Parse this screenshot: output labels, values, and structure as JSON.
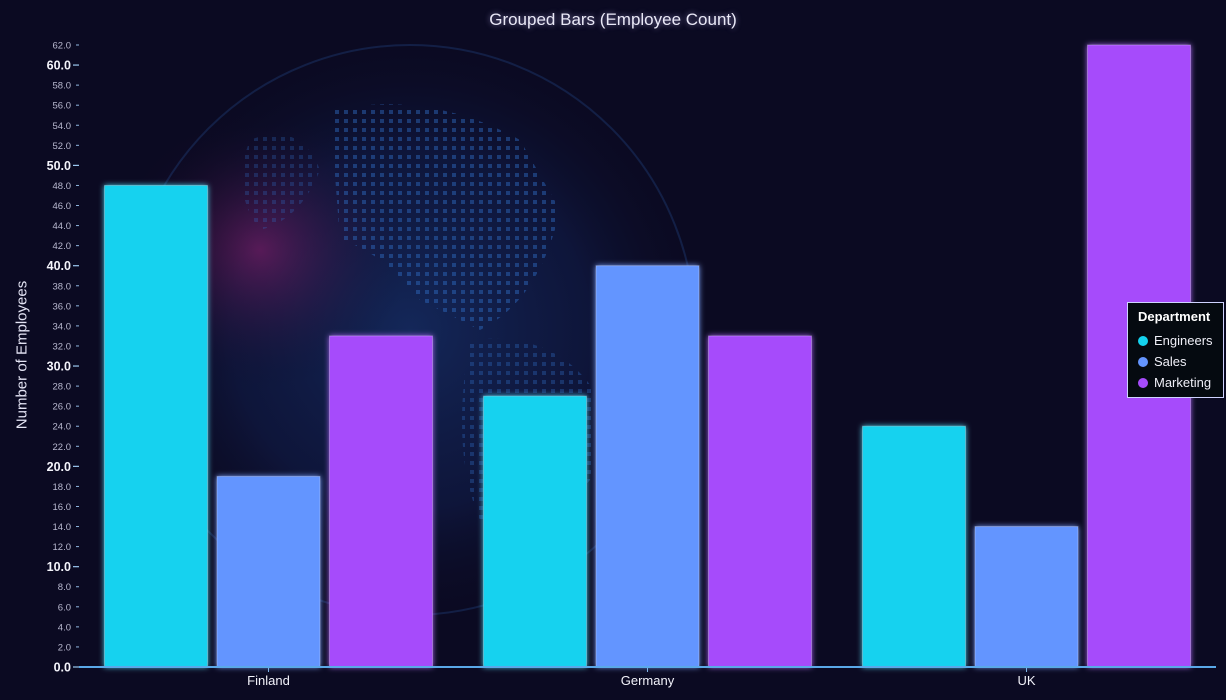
{
  "chart_data": {
    "type": "bar",
    "title": "Grouped Bars (Employee Count)",
    "xlabel": "",
    "ylabel": "Number of Employees",
    "categories": [
      "Finland",
      "Germany",
      "UK"
    ],
    "series": [
      {
        "name": "Engineers",
        "values": [
          48,
          27,
          24
        ],
        "color": "#14d2ef"
      },
      {
        "name": "Sales",
        "values": [
          19,
          40,
          14
        ],
        "color": "#6495ff"
      },
      {
        "name": "Marketing",
        "values": [
          33,
          33,
          62
        ],
        "color": "#a64bfb"
      }
    ],
    "ylim": [
      0,
      62
    ],
    "y_major_ticks": [
      "0.0",
      "10.0",
      "20.0",
      "30.0",
      "40.0",
      "50.0",
      "60.0"
    ],
    "y_minor_ticks": [
      "2.0",
      "4.0",
      "6.0",
      "8.0",
      "12.0",
      "14.0",
      "16.0",
      "18.0",
      "22.0",
      "24.0",
      "26.0",
      "28.0",
      "32.0",
      "34.0",
      "36.0",
      "38.0",
      "42.0",
      "44.0",
      "46.0",
      "48.0",
      "52.0",
      "54.0",
      "56.0",
      "58.0",
      "62.0"
    ],
    "legend": {
      "title": "Department",
      "position": "right"
    },
    "grid": false
  }
}
